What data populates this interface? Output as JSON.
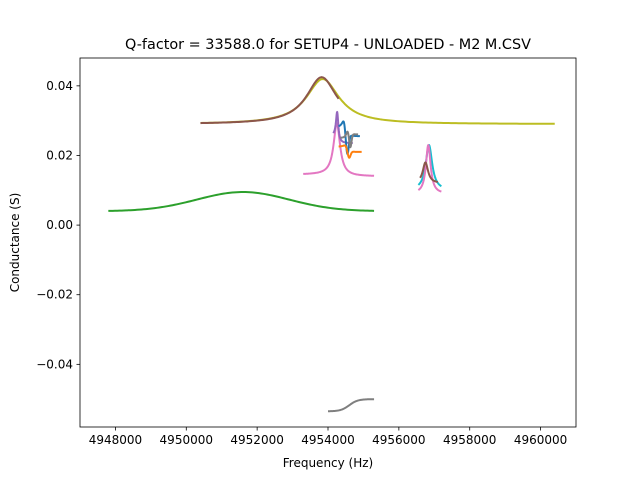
{
  "chart_data": {
    "type": "line",
    "title": "Q-factor = 33588.0 for SETUP4 - UNLOADED - M2 M.CSV",
    "xlabel": "Frequency (Hz)",
    "ylabel": "Conductance (S)",
    "xlim": [
      4947000,
      4961000
    ],
    "ylim": [
      -0.058,
      0.048
    ],
    "xticks": [
      4948000,
      4950000,
      4952000,
      4954000,
      4956000,
      4958000,
      4960000
    ],
    "xtick_labels": [
      "4948000",
      "4950000",
      "4952000",
      "4954000",
      "4956000",
      "4958000",
      "4960000"
    ],
    "yticks": [
      -0.04,
      -0.02,
      0.0,
      0.02,
      0.04
    ],
    "ytick_labels": [
      "−0.04",
      "−0.02",
      "0.00",
      "0.02",
      "0.04"
    ],
    "grid": false,
    "legend": false,
    "series": [
      {
        "color": "#bcbd22",
        "kind": "lorentz",
        "x0": 4950400,
        "x1": 4960400,
        "center": 4953850,
        "width": 560,
        "base": 0.029,
        "amp": 0.013,
        "n": 140
      },
      {
        "color": "#8c564b",
        "kind": "lorentz",
        "x0": 4950400,
        "x1": 4954300,
        "center": 4953820,
        "width": 520,
        "base": 0.029,
        "amp": 0.0135,
        "n": 80
      },
      {
        "color": "#2ca02c",
        "kind": "gauss",
        "x0": 4947800,
        "x1": 4955300,
        "center": 4951600,
        "width": 1300,
        "base": 0.004,
        "amp": 0.0055,
        "slope": -0.02,
        "n": 120
      },
      {
        "color": "#e377c2",
        "kind": "fano",
        "x0": 4953300,
        "x1": 4955300,
        "center": 4954250,
        "width": 110,
        "base": 0.0145,
        "amp": 0.015,
        "after": 0.014,
        "n": 120
      },
      {
        "color": "#9467bd",
        "kind": "fano",
        "x0": 4954150,
        "x1": 4954700,
        "center": 4954260,
        "width": 40,
        "base": 0.0255,
        "amp": 0.008,
        "after": 0.0235,
        "n": 60
      },
      {
        "color": "#1f77b4",
        "kind": "fano",
        "x0": 4954300,
        "x1": 4954900,
        "center": 4954450,
        "width": 60,
        "base": 0.028,
        "amp": 0.003,
        "after": 0.0255,
        "dip": 0.006,
        "n": 60
      },
      {
        "color": "#ff7f0e",
        "kind": "fano",
        "x0": 4954300,
        "x1": 4954950,
        "center": 4954500,
        "width": 60,
        "base": 0.0225,
        "amp": 0.001,
        "after": 0.021,
        "dip": 0.002,
        "n": 60
      },
      {
        "color": "#7f7f7f",
        "kind": "fano",
        "x0": 4954350,
        "x1": 4954850,
        "center": 4954550,
        "width": 50,
        "base": 0.025,
        "amp": 0.0015,
        "after": 0.026,
        "dip": 0.004,
        "n": 50
      },
      {
        "color": "#17becf",
        "kind": "lorentz",
        "x0": 4956550,
        "x1": 4957200,
        "center": 4956850,
        "width": 110,
        "base": 0.01,
        "amp": 0.013,
        "n": 60
      },
      {
        "color": "#e377c2",
        "kind": "lorentz",
        "x0": 4956550,
        "x1": 4957200,
        "center": 4956830,
        "width": 80,
        "base": 0.009,
        "amp": 0.014,
        "n": 60
      },
      {
        "color": "#8c564b",
        "kind": "lorentz",
        "x0": 4956600,
        "x1": 4957100,
        "center": 4956750,
        "width": 90,
        "base": 0.012,
        "amp": 0.006,
        "n": 50
      },
      {
        "color": "#7f7f7f",
        "kind": "ramp",
        "x0": 4954000,
        "x1": 4955300,
        "center": 4954600,
        "width": 120,
        "base": -0.0535,
        "amp": 0.0035,
        "n": 50
      }
    ]
  }
}
